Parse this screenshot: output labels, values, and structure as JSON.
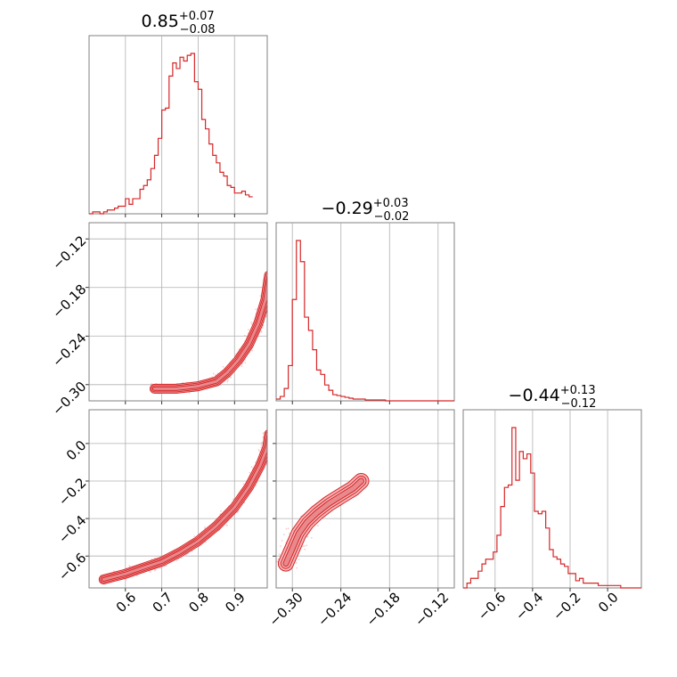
{
  "colors": {
    "accent": "#d62728",
    "fill": "#f4b6b8",
    "grid": "#b0b0b0",
    "frame": "#808080"
  },
  "chart_data": {
    "type": "corner",
    "parameters": [
      {
        "title": {
          "median": "0.85",
          "plus": "+0.07",
          "minus": "−0.08"
        },
        "range": [
          0.5,
          0.99
        ],
        "ticks": [
          0.6,
          0.7,
          0.8,
          0.9
        ],
        "tick_labels": [
          "0.6",
          "0.7",
          "0.8",
          "0.9"
        ],
        "hist_edges_start": 0.5,
        "hist_bin_width": 0.01,
        "hist_values": [
          0,
          1,
          1,
          0,
          1,
          2,
          2,
          3,
          4,
          4,
          8,
          5,
          8,
          8,
          13,
          15,
          18,
          24,
          31,
          40,
          55,
          56,
          73,
          80,
          77,
          83,
          81,
          84,
          85,
          70,
          66,
          50,
          45,
          37,
          31,
          27,
          22,
          20,
          15,
          14,
          11,
          11,
          12,
          10,
          9
        ]
      },
      {
        "title": {
          "median": "−0.29",
          "plus": "+0.03",
          "minus": "−0.02"
        },
        "range": [
          -0.32,
          -0.1
        ],
        "ticks": [
          -0.3,
          -0.24,
          -0.18,
          -0.12
        ],
        "tick_labels": [
          "−0.30",
          "−0.24",
          "−0.18",
          "−0.12"
        ],
        "hist_edges_start": -0.32,
        "hist_bin_width": 0.005,
        "hist_values": [
          2,
          5,
          14,
          40,
          115,
          182,
          158,
          95,
          80,
          58,
          35,
          30,
          18,
          12,
          7,
          6,
          5,
          4,
          3,
          2,
          2,
          2,
          1,
          1,
          1,
          1,
          1,
          0,
          0,
          0,
          0,
          0,
          0,
          0,
          0,
          0,
          0,
          0,
          0,
          0,
          0,
          0,
          0,
          0
        ]
      },
      {
        "title": {
          "median": "−0.44",
          "plus": "+0.13",
          "minus": "−0.12"
        },
        "range": [
          -0.77,
          0.18
        ],
        "ticks": [
          -0.6,
          -0.4,
          -0.2,
          0.0
        ],
        "tick_labels": [
          "−0.6",
          "−0.4",
          "−0.2",
          "0.0"
        ],
        "hist_edges_start": -0.77,
        "hist_bin_width": 0.02,
        "hist_values": [
          0,
          2,
          4,
          4,
          7,
          10,
          12,
          12,
          15,
          22,
          34,
          42,
          43,
          67,
          45,
          57,
          54,
          56,
          48,
          32,
          31,
          32,
          25,
          16,
          13,
          12,
          10,
          9,
          6,
          6,
          3,
          4,
          2,
          2,
          2,
          2,
          1,
          1,
          1,
          1,
          1,
          1,
          0,
          0,
          0,
          0,
          0,
          0
        ]
      }
    ],
    "joint_curves": [
      {
        "pair": "x0-x1",
        "centerline": [
          [
            0.68,
            -0.305
          ],
          [
            0.74,
            -0.305
          ],
          [
            0.8,
            -0.302
          ],
          [
            0.85,
            -0.296
          ],
          [
            0.88,
            -0.285
          ],
          [
            0.91,
            -0.27
          ],
          [
            0.94,
            -0.25
          ],
          [
            0.965,
            -0.225
          ],
          [
            0.985,
            -0.195
          ],
          [
            0.995,
            -0.165
          ]
        ]
      },
      {
        "pair": "x0-x2",
        "centerline": [
          [
            0.54,
            -0.725
          ],
          [
            0.6,
            -0.695
          ],
          [
            0.66,
            -0.655
          ],
          [
            0.7,
            -0.63
          ],
          [
            0.75,
            -0.58
          ],
          [
            0.8,
            -0.52
          ],
          [
            0.85,
            -0.44
          ],
          [
            0.9,
            -0.34
          ],
          [
            0.94,
            -0.23
          ],
          [
            0.97,
            -0.12
          ],
          [
            0.99,
            -0.02
          ],
          [
            0.995,
            0.05
          ]
        ]
      },
      {
        "pair": "x1-x2",
        "centerline": [
          [
            -0.308,
            -0.64
          ],
          [
            -0.3,
            -0.56
          ],
          [
            -0.292,
            -0.48
          ],
          [
            -0.282,
            -0.42
          ],
          [
            -0.27,
            -0.37
          ],
          [
            -0.255,
            -0.32
          ],
          [
            -0.24,
            -0.28
          ],
          [
            -0.225,
            -0.24
          ],
          [
            -0.215,
            -0.2
          ]
        ]
      }
    ]
  }
}
